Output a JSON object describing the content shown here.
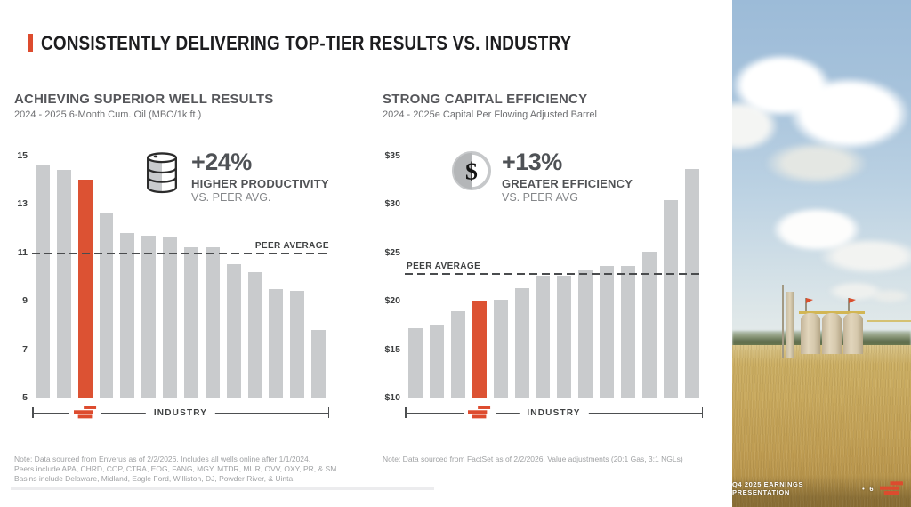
{
  "slide": {
    "title": "CONSISTENTLY DELIVERING TOP-TIER RESULTS VS. INDUSTRY"
  },
  "colors": {
    "accent": "#DD4B2E",
    "bar": "#C9CBCD",
    "highlight": "#DC5233",
    "peerline": "#4A4C4E"
  },
  "footer": {
    "label": "Q4 2025 EARNINGS PRESENTATION",
    "separator": "•",
    "page": "6"
  },
  "chart_data": [
    {
      "type": "bar",
      "title": "ACHIEVING SUPERIOR WELL RESULTS",
      "subtitle": "2024 - 2025 6-Month Cum. Oil (MBO/1k ft.)",
      "values": [
        14.6,
        14.4,
        14.0,
        12.6,
        11.8,
        11.7,
        11.6,
        11.2,
        11.2,
        10.5,
        10.2,
        9.5,
        9.4,
        7.8
      ],
      "highlight_index": 2,
      "peer_average": 11.0,
      "peer_label": "PEER AVERAGE",
      "peer_label_side": "right",
      "ylim": [
        5,
        15
      ],
      "yticks": [
        "15",
        "13",
        "11",
        "9",
        "7",
        "5"
      ],
      "industry_label": "INDUSTRY",
      "grid": false,
      "legend": false,
      "annotation": {
        "icon": "oil-barrel",
        "stat": "+24%",
        "line1": "HIGHER PRODUCTIVITY",
        "line2": "VS. PEER AVG."
      },
      "note": "Note: Data sourced from Enverus as of 2/2/2026. Includes all wells online after 1/1/2024.\nPeers include APA, CHRD, COP, CTRA, EOG, FANG, MGY, MTDR, MUR, OVV, OXY, PR, & SM.\nBasins include Delaware, Midland, Eagle Ford, Williston, DJ, Powder River, & Uinta."
    },
    {
      "type": "bar",
      "title": "STRONG CAPITAL EFFICIENCY",
      "subtitle": "2024 - 2025e Capital Per Flowing Adjusted Barrel",
      "values": [
        17.2,
        17.5,
        18.9,
        20.0,
        20.1,
        21.3,
        22.6,
        22.6,
        23.1,
        23.6,
        23.6,
        25.1,
        30.4,
        33.6
      ],
      "highlight_index": 3,
      "peer_average": 22.9,
      "peer_label": "PEER AVERAGE",
      "peer_label_side": "left",
      "ylim": [
        10,
        35
      ],
      "yticks": [
        "$35",
        "$30",
        "$25",
        "$20",
        "$15",
        "$10"
      ],
      "industry_label": "INDUSTRY",
      "grid": false,
      "legend": false,
      "annotation": {
        "icon": "dollar-circle",
        "stat": "+13%",
        "line1": "GREATER EFFICIENCY",
        "line2": "VS. PEER AVG"
      },
      "note": "Note: Data sourced from FactSet as of 2/2/2026. Value adjustments (20:1 Gas, 3:1 NGLs)"
    }
  ]
}
